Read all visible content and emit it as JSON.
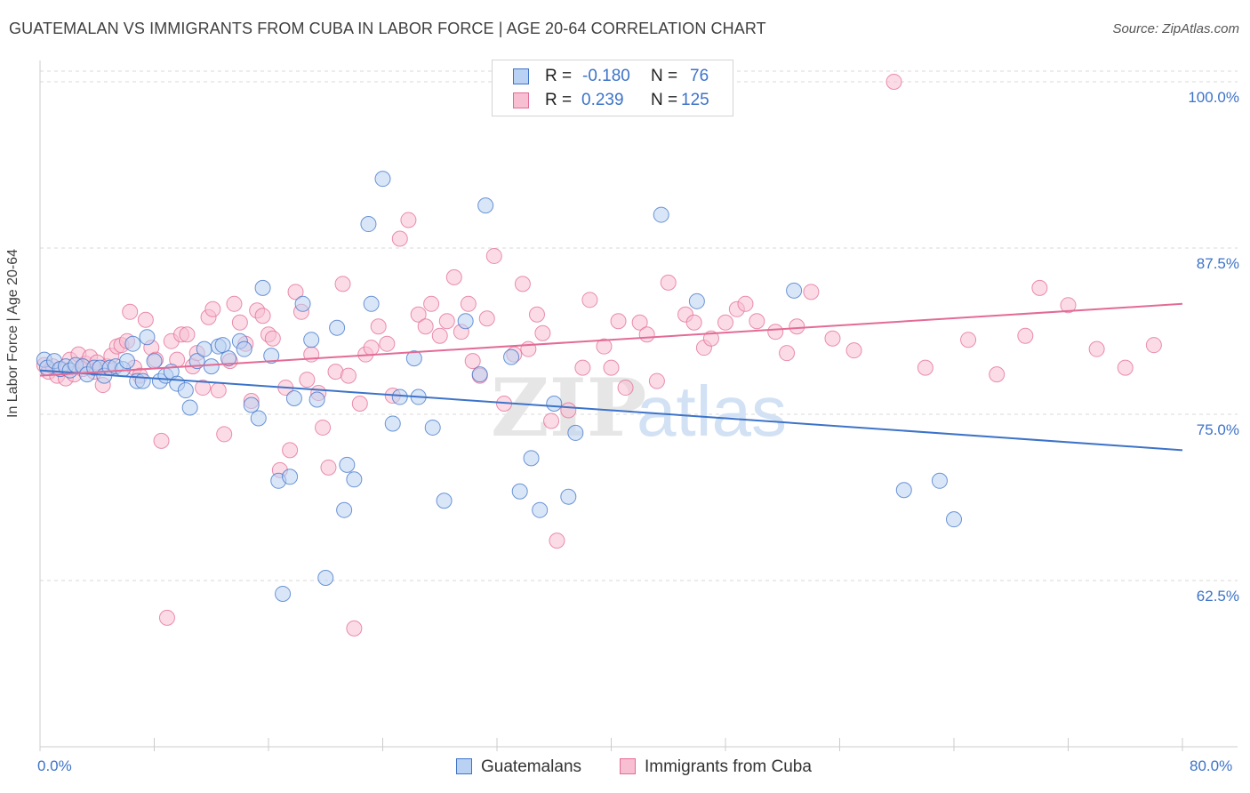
{
  "title": "GUATEMALAN VS IMMIGRANTS FROM CUBA IN LABOR FORCE | AGE 20-64 CORRELATION CHART",
  "source": "Source: ZipAtlas.com",
  "watermark": {
    "zip": "ZIP",
    "atlas": "atlas"
  },
  "colors": {
    "blue": "#3d73c8",
    "blue_fill": "#b9d2f3",
    "pink": "#e36b96",
    "pink_fill": "#f7bfd1",
    "grid": "#d9d9d9"
  },
  "legend": {
    "rows": [
      {
        "r_label": "R =",
        "r_value": "-0.180",
        "n_label": "N =",
        "n_value": "76"
      },
      {
        "r_label": "R =",
        "r_value": "0.239",
        "n_label": "N =",
        "n_value": "125"
      }
    ]
  },
  "bottom_legend": [
    "Guatemalans",
    "Immigrants from Cuba"
  ],
  "chart_data": {
    "type": "scatter",
    "xlabel": "",
    "ylabel": "In Labor Force | Age 20-64",
    "xlim": [
      0,
      80
    ],
    "ylim": [
      50,
      101
    ],
    "x_tick_labels": [
      "0.0%",
      "80.0%"
    ],
    "y_ticks": [
      62.5,
      75.0,
      87.5,
      100.0
    ],
    "y_tick_labels": [
      "62.5%",
      "75.0%",
      "87.5%",
      "100.0%"
    ],
    "grid": "horizontal dashed",
    "legend_position": "top-center",
    "series": [
      {
        "name": "Guatemalans",
        "trend": {
          "x": [
            0,
            80
          ],
          "y": [
            78.3,
            72.3
          ]
        },
        "points": [
          [
            0.3,
            79.1
          ],
          [
            0.5,
            78.5
          ],
          [
            1.0,
            79.0
          ],
          [
            1.4,
            78.4
          ],
          [
            1.8,
            78.6
          ],
          [
            2.1,
            78.3
          ],
          [
            2.5,
            78.7
          ],
          [
            3.0,
            78.6
          ],
          [
            3.3,
            78.0
          ],
          [
            3.8,
            78.5
          ],
          [
            4.2,
            78.5
          ],
          [
            4.5,
            77.9
          ],
          [
            4.9,
            78.5
          ],
          [
            5.3,
            78.6
          ],
          [
            5.8,
            78.4
          ],
          [
            6.1,
            79.0
          ],
          [
            6.5,
            80.3
          ],
          [
            6.8,
            77.5
          ],
          [
            7.2,
            77.5
          ],
          [
            7.5,
            80.8
          ],
          [
            8.0,
            79.0
          ],
          [
            8.4,
            77.5
          ],
          [
            8.8,
            77.9
          ],
          [
            9.2,
            78.2
          ],
          [
            9.6,
            77.3
          ],
          [
            10.2,
            76.8
          ],
          [
            10.5,
            75.5
          ],
          [
            11.0,
            79.0
          ],
          [
            11.5,
            79.9
          ],
          [
            12.0,
            78.6
          ],
          [
            12.5,
            80.1
          ],
          [
            12.8,
            80.2
          ],
          [
            13.2,
            79.2
          ],
          [
            14.0,
            80.5
          ],
          [
            14.3,
            79.9
          ],
          [
            14.8,
            75.7
          ],
          [
            15.3,
            74.7
          ],
          [
            15.6,
            84.5
          ],
          [
            16.2,
            79.4
          ],
          [
            16.7,
            70.0
          ],
          [
            17.0,
            61.5
          ],
          [
            17.5,
            70.3
          ],
          [
            17.8,
            76.2
          ],
          [
            18.4,
            83.3
          ],
          [
            19.0,
            80.6
          ],
          [
            19.4,
            76.1
          ],
          [
            20.0,
            62.7
          ],
          [
            20.8,
            81.5
          ],
          [
            21.3,
            67.8
          ],
          [
            21.5,
            71.2
          ],
          [
            22.0,
            70.1
          ],
          [
            23.0,
            89.3
          ],
          [
            23.2,
            83.3
          ],
          [
            24.0,
            92.7
          ],
          [
            24.7,
            74.3
          ],
          [
            25.2,
            76.3
          ],
          [
            26.2,
            79.2
          ],
          [
            26.5,
            76.3
          ],
          [
            27.5,
            74.0
          ],
          [
            28.3,
            68.5
          ],
          [
            29.8,
            82.0
          ],
          [
            30.8,
            78.0
          ],
          [
            31.2,
            90.7
          ],
          [
            33.0,
            79.3
          ],
          [
            33.6,
            69.2
          ],
          [
            34.4,
            71.7
          ],
          [
            35.0,
            67.8
          ],
          [
            36.0,
            75.8
          ],
          [
            37.0,
            68.8
          ],
          [
            37.5,
            73.6
          ],
          [
            43.5,
            90.0
          ],
          [
            46.0,
            83.5
          ],
          [
            52.8,
            84.3
          ],
          [
            60.5,
            69.3
          ],
          [
            63.0,
            70.0
          ],
          [
            64.0,
            67.1
          ]
        ]
      },
      {
        "name": "Immigrants from Cuba",
        "trend": {
          "x": [
            0,
            80
          ],
          "y": [
            77.9,
            83.3
          ]
        },
        "points": [
          [
            0.3,
            78.7
          ],
          [
            0.6,
            78.2
          ],
          [
            0.9,
            78.6
          ],
          [
            1.2,
            77.9
          ],
          [
            1.5,
            78.4
          ],
          [
            1.8,
            77.7
          ],
          [
            2.1,
            79.1
          ],
          [
            2.4,
            78.0
          ],
          [
            2.7,
            79.5
          ],
          [
            3.0,
            78.4
          ],
          [
            3.2,
            78.8
          ],
          [
            3.5,
            79.3
          ],
          [
            3.8,
            78.2
          ],
          [
            4.0,
            78.9
          ],
          [
            4.4,
            77.2
          ],
          [
            4.7,
            78.6
          ],
          [
            5.0,
            79.4
          ],
          [
            5.4,
            80.1
          ],
          [
            5.7,
            80.2
          ],
          [
            6.1,
            80.5
          ],
          [
            6.3,
            82.7
          ],
          [
            6.6,
            78.5
          ],
          [
            7.0,
            77.9
          ],
          [
            7.4,
            82.1
          ],
          [
            7.8,
            80.0
          ],
          [
            8.1,
            79.1
          ],
          [
            8.5,
            73.0
          ],
          [
            8.9,
            59.7
          ],
          [
            9.2,
            80.5
          ],
          [
            9.6,
            79.1
          ],
          [
            9.9,
            81.0
          ],
          [
            10.3,
            81.0
          ],
          [
            10.7,
            78.6
          ],
          [
            11.0,
            79.6
          ],
          [
            11.4,
            77.0
          ],
          [
            11.8,
            82.3
          ],
          [
            12.1,
            82.9
          ],
          [
            12.5,
            76.8
          ],
          [
            12.9,
            73.5
          ],
          [
            13.3,
            79.0
          ],
          [
            13.6,
            83.3
          ],
          [
            14.0,
            81.9
          ],
          [
            14.4,
            80.3
          ],
          [
            14.8,
            76.0
          ],
          [
            15.2,
            82.8
          ],
          [
            15.6,
            82.4
          ],
          [
            16.0,
            81.0
          ],
          [
            16.3,
            80.7
          ],
          [
            16.8,
            70.8
          ],
          [
            17.2,
            77.0
          ],
          [
            17.5,
            72.3
          ],
          [
            17.9,
            84.2
          ],
          [
            18.3,
            82.7
          ],
          [
            18.7,
            77.6
          ],
          [
            19.0,
            79.5
          ],
          [
            19.5,
            76.6
          ],
          [
            19.8,
            74.0
          ],
          [
            20.2,
            71.0
          ],
          [
            20.7,
            78.2
          ],
          [
            21.2,
            84.8
          ],
          [
            21.6,
            77.9
          ],
          [
            22.0,
            58.9
          ],
          [
            22.4,
            75.8
          ],
          [
            22.8,
            79.5
          ],
          [
            23.2,
            80.0
          ],
          [
            23.7,
            81.6
          ],
          [
            24.3,
            80.3
          ],
          [
            24.7,
            76.4
          ],
          [
            25.2,
            88.2
          ],
          [
            25.8,
            89.6
          ],
          [
            26.5,
            82.5
          ],
          [
            27.0,
            81.6
          ],
          [
            27.4,
            83.3
          ],
          [
            28.0,
            80.9
          ],
          [
            28.5,
            82.0
          ],
          [
            29.0,
            85.3
          ],
          [
            29.5,
            81.2
          ],
          [
            30.0,
            83.3
          ],
          [
            30.3,
            79.0
          ],
          [
            30.8,
            77.9
          ],
          [
            31.3,
            82.2
          ],
          [
            31.8,
            86.9
          ],
          [
            32.5,
            75.8
          ],
          [
            33.2,
            79.5
          ],
          [
            33.8,
            84.8
          ],
          [
            34.2,
            79.9
          ],
          [
            34.8,
            82.5
          ],
          [
            35.2,
            81.1
          ],
          [
            35.8,
            74.5
          ],
          [
            36.2,
            65.5
          ],
          [
            37.0,
            75.3
          ],
          [
            38.0,
            78.5
          ],
          [
            38.5,
            83.6
          ],
          [
            39.5,
            80.1
          ],
          [
            40.0,
            78.5
          ],
          [
            40.5,
            82.0
          ],
          [
            41.0,
            77.0
          ],
          [
            42.0,
            81.9
          ],
          [
            42.5,
            81.0
          ],
          [
            43.2,
            77.5
          ],
          [
            44.0,
            84.9
          ],
          [
            45.2,
            82.5
          ],
          [
            45.8,
            81.9
          ],
          [
            46.5,
            80.0
          ],
          [
            47.0,
            80.7
          ],
          [
            48.0,
            81.9
          ],
          [
            48.8,
            82.9
          ],
          [
            49.4,
            83.3
          ],
          [
            50.2,
            82.0
          ],
          [
            51.5,
            81.2
          ],
          [
            52.3,
            79.6
          ],
          [
            53.0,
            81.6
          ],
          [
            54.0,
            84.2
          ],
          [
            55.5,
            80.7
          ],
          [
            57.0,
            79.8
          ],
          [
            59.8,
            100.0
          ],
          [
            62.0,
            78.5
          ],
          [
            65.0,
            80.6
          ],
          [
            67.0,
            78.0
          ],
          [
            69.0,
            80.9
          ],
          [
            70.0,
            84.5
          ],
          [
            72.0,
            83.2
          ],
          [
            74.0,
            79.9
          ],
          [
            76.0,
            78.5
          ],
          [
            78.0,
            80.2
          ]
        ]
      }
    ]
  }
}
